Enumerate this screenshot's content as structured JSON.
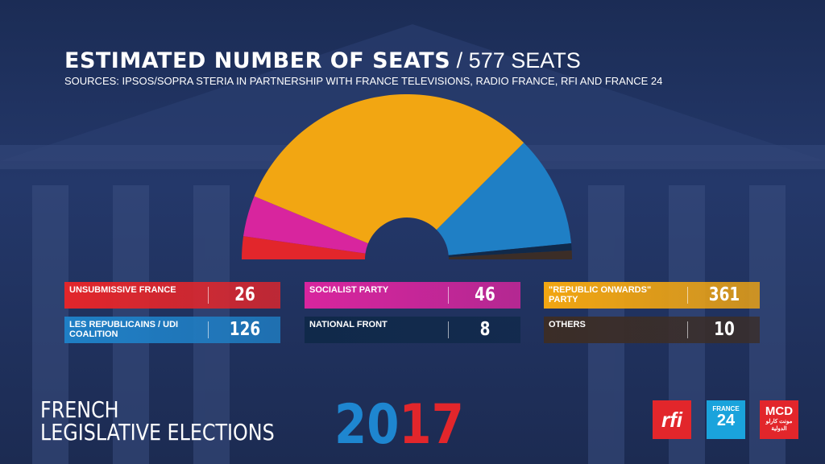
{
  "chart_data": {
    "type": "half-donut",
    "title": "ESTIMATED NUMBER OF SEATS",
    "title_suffix": "/ 577 SEATS",
    "subtitle": "SOURCES: IPSOS/SOPRA STERIA IN PARTNERSHIP WITH FRANCE TELEVISIONS, RADIO FRANCE, RFI AND FRANCE 24",
    "categories": [
      "UNSUBMISSIVE FRANCE",
      "SOCIALIST PARTY",
      "\"REPUBLIC ONWARDS\" PARTY",
      "LES REPUBLICAINS / UDI COALITION",
      "NATIONAL FRONT",
      "OTHERS"
    ],
    "values": [
      26,
      46,
      361,
      126,
      8,
      10
    ],
    "colors": [
      "#e2262b",
      "#d8259e",
      "#f2a612",
      "#1f7fc5",
      "#10294a",
      "#3b2d27"
    ]
  },
  "footer": {
    "line1": "FRENCH",
    "line2": "LEGISLATIVE ELECTIONS",
    "year": "2017"
  },
  "logos": {
    "rfi": "rfi",
    "france24_top": "FRANCE",
    "france24_bottom": "24",
    "mcd": "MCD",
    "mcd_arabic": "مونت كارلو الدولية"
  }
}
